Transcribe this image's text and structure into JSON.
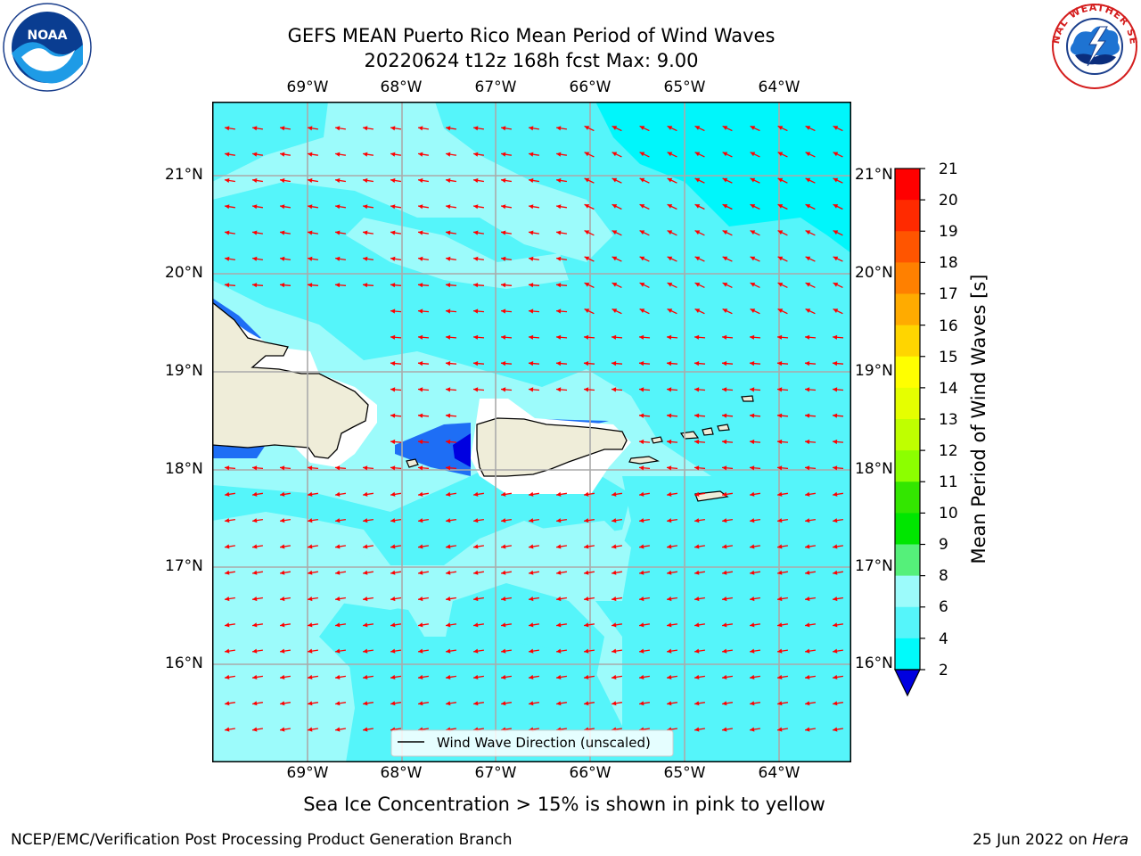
{
  "title": {
    "line1": "GEFS MEAN Puerto Rico Mean Period of Wind Waves",
    "line2": "20220624 t12z 168h fcst   Max: 9.00"
  },
  "axes": {
    "lon_labels": [
      "69°W",
      "68°W",
      "67°W",
      "66°W",
      "65°W",
      "64°W"
    ],
    "lat_labels": [
      "21°N",
      "20°N",
      "19°N",
      "18°N",
      "17°N",
      "16°N"
    ]
  },
  "legend": {
    "label": "Wind Wave Direction (unscaled)"
  },
  "colorbar": {
    "label": "Mean Period of Wind Waves [s]",
    "ticks": [
      "21",
      "20",
      "19",
      "18",
      "17",
      "16",
      "15",
      "14",
      "13",
      "12",
      "11",
      "10",
      "9",
      "8",
      "6",
      "4",
      "2"
    ],
    "colors": [
      "#ff0000",
      "#ff2a00",
      "#ff5500",
      "#ff8000",
      "#ffab00",
      "#ffd500",
      "#ffff00",
      "#e5ff00",
      "#bfff00",
      "#8cff00",
      "#33e600",
      "#00e600",
      "#55f07a",
      "#9cfbfb",
      "#55f5fa",
      "#00fbfb",
      "#1e6ef5",
      "#0000e0"
    ]
  },
  "map": {
    "ocean_light": "#9cfbfb",
    "ocean_mid": "#55f5fa",
    "ocean_deep": "#00f6fb",
    "land": "#efedd9",
    "arrow_color": "#ff0000",
    "grid_color": "#aaaaaa"
  },
  "logos": {
    "left": "noaa-logo",
    "right": "nws-logo"
  },
  "footer": {
    "note": "Sea Ice Concentration > 15% is shown in pink to yellow",
    "left": "NCEP/EMC/Verification Post Processing Product Generation Branch",
    "right_date": "25 Jun 2022 on ",
    "right_host": "Hera"
  }
}
